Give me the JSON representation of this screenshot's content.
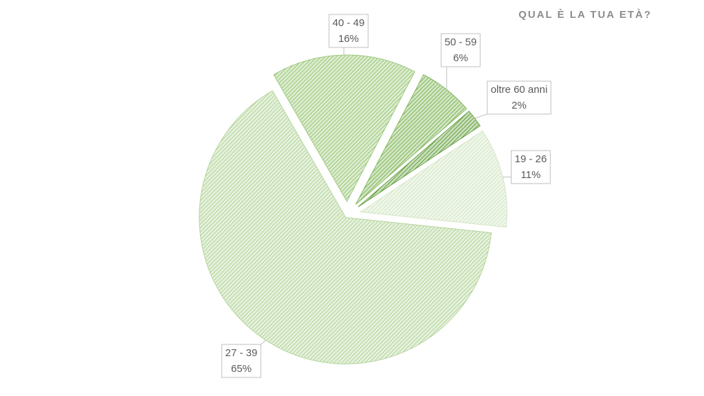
{
  "chart_data": {
    "type": "pie",
    "title": "QUAL È LA TUA ETÀ?",
    "categories": [
      "19 - 26",
      "27 - 39",
      "40 - 49",
      "50 - 59",
      "oltre 60 anni"
    ],
    "values": [
      11,
      65,
      16,
      6,
      2
    ],
    "value_labels": [
      "11%",
      "65%",
      "16%",
      "6%",
      "2%"
    ],
    "colors": [
      "#d4e6c6",
      "#b5d59c",
      "#9cc97a",
      "#82b85c",
      "#6aa444"
    ]
  }
}
